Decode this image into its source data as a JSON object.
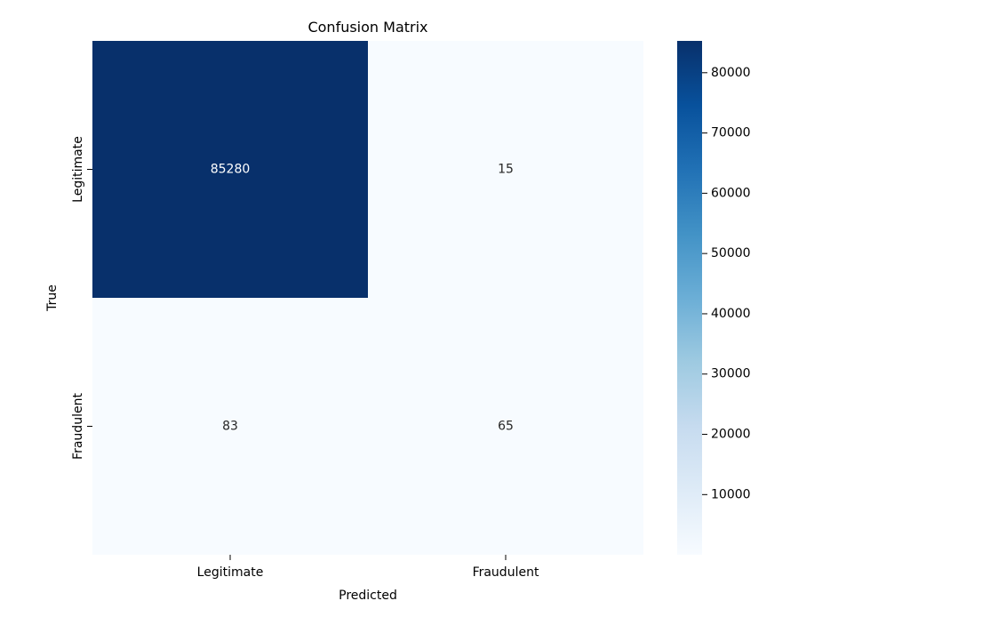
{
  "chart_data": {
    "type": "heatmap",
    "title": "Confusion Matrix",
    "xlabel": "Predicted",
    "ylabel": "True",
    "x_categories": [
      "Legitimate",
      "Fraudulent"
    ],
    "y_categories": [
      "Legitimate",
      "Fraudulent"
    ],
    "matrix": [
      [
        85280,
        15
      ],
      [
        83,
        65
      ]
    ],
    "colormap": "Blues",
    "colorbar": {
      "ticks": [
        10000,
        20000,
        30000,
        40000,
        50000,
        60000,
        70000,
        80000
      ],
      "range": [
        15,
        85280
      ]
    },
    "colors": {
      "low": "#f7fbff",
      "high": "#08306b",
      "text_on_dark": "#ffffff",
      "text_on_light": "#262626"
    }
  }
}
